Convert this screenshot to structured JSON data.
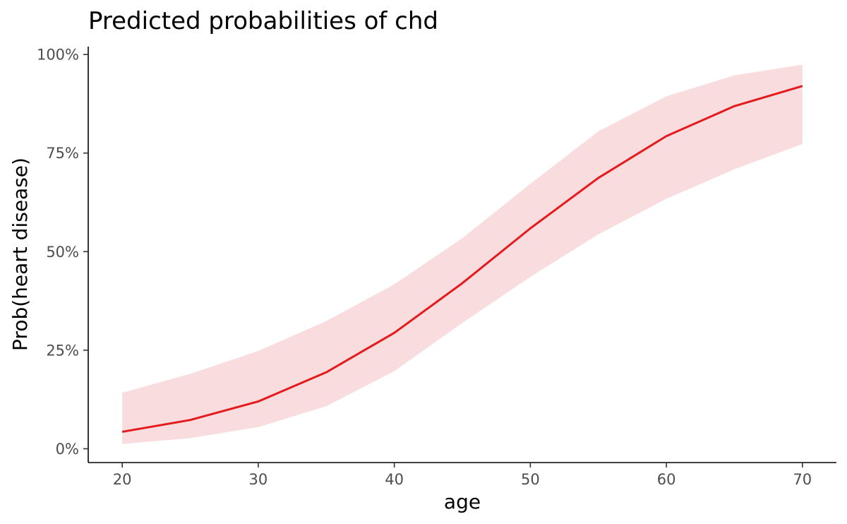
{
  "chart_data": {
    "type": "line",
    "title": "Predicted probabilities of chd",
    "xlabel": "age",
    "ylabel": "Prob(heart disease)",
    "xlim": [
      17.5,
      72.5
    ],
    "ylim": [
      -0.035,
      1.02
    ],
    "x_ticks": [
      20,
      30,
      40,
      50,
      60,
      70
    ],
    "x_tick_labels": [
      "20",
      "30",
      "40",
      "50",
      "60",
      "70"
    ],
    "y_ticks": [
      0,
      0.25,
      0.5,
      0.75,
      1.0
    ],
    "y_tick_labels": [
      "0%",
      "25%",
      "50%",
      "75%",
      "100%"
    ],
    "grid": false,
    "series": [
      {
        "name": "chd",
        "color": "#e41a1c",
        "band_color": "#f9dcde",
        "x": [
          20,
          25,
          30,
          35,
          40,
          45,
          50,
          55,
          60,
          65,
          70
        ],
        "y": [
          0.043,
          0.073,
          0.12,
          0.194,
          0.294,
          0.42,
          0.559,
          0.687,
          0.793,
          0.869,
          0.92
        ],
        "lower": [
          0.012,
          0.027,
          0.055,
          0.108,
          0.197,
          0.319,
          0.436,
          0.544,
          0.634,
          0.709,
          0.773
        ],
        "upper": [
          0.142,
          0.19,
          0.248,
          0.324,
          0.417,
          0.534,
          0.672,
          0.805,
          0.894,
          0.947,
          0.974
        ]
      }
    ]
  }
}
